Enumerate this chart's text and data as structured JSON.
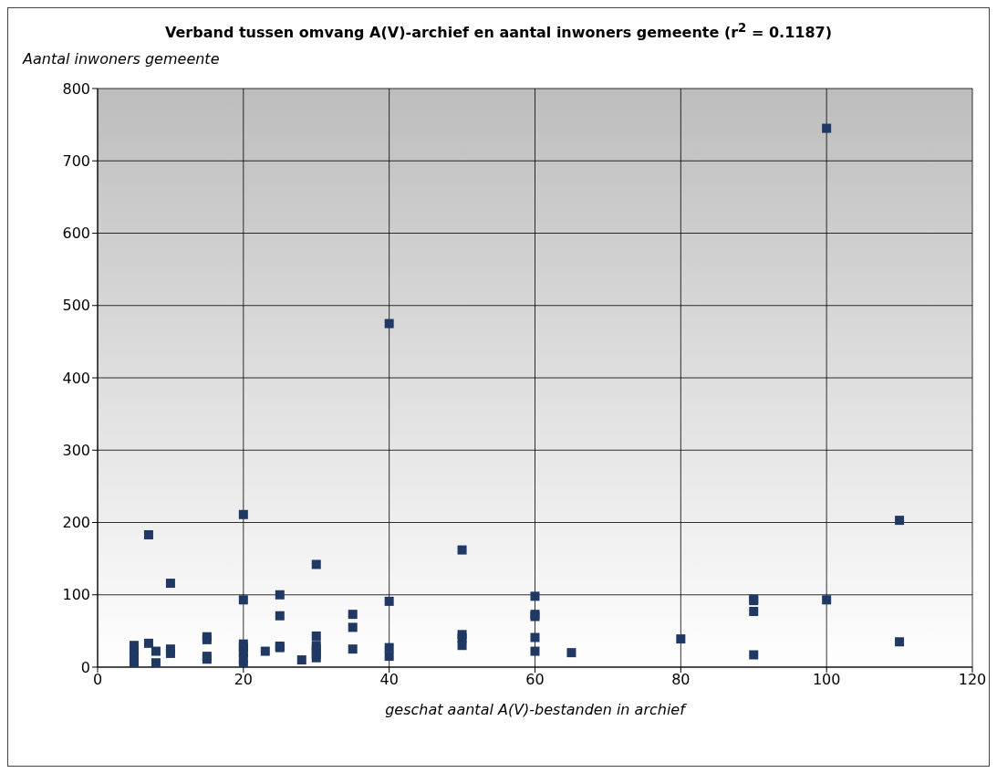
{
  "chart_data": {
    "type": "scatter",
    "title": "Verband tussen omvang A(V)-archief en aantal inwoners gemeente (r$^{2}$ = 0.1187)",
    "xlabel": "geschat aantal A(V)-bestanden in archief",
    "ylabel": "Aantal inwoners gemeente",
    "x": [
      5,
      5,
      5,
      5,
      5,
      7,
      7,
      8,
      8,
      10,
      10,
      10,
      15,
      15,
      15,
      15,
      20,
      20,
      20,
      20,
      20,
      20,
      20,
      23,
      25,
      25,
      25,
      25,
      28,
      30,
      30,
      30,
      30,
      30,
      30,
      35,
      35,
      35,
      40,
      40,
      40,
      40,
      50,
      50,
      50,
      50,
      60,
      60,
      60,
      60,
      60,
      65,
      80,
      90,
      90,
      90,
      90,
      100,
      100,
      110,
      110
    ],
    "series": [
      {
        "color": "#1f3864",
        "values": [
          30,
          22,
          15,
          8,
          2,
          183,
          33,
          22,
          6,
          116,
          25,
          19,
          42,
          38,
          15,
          11,
          211,
          93,
          32,
          27,
          20,
          12,
          3,
          22,
          100,
          71,
          29,
          27,
          10,
          142,
          43,
          30,
          25,
          18,
          13,
          73,
          55,
          25,
          475,
          91,
          27,
          15,
          162,
          45,
          40,
          30,
          98,
          73,
          70,
          41,
          22,
          20,
          39,
          94,
          92,
          77,
          17,
          745,
          93,
          203,
          35
        ]
      }
    ],
    "xlim": [
      0,
      120
    ],
    "xticks": [
      0,
      20,
      40,
      60,
      80,
      100,
      120
    ],
    "ylim": [
      0,
      800
    ],
    "yticks": [
      0,
      100,
      200,
      300,
      400,
      500,
      600,
      700,
      800
    ],
    "grid": true,
    "legend": false,
    "marker": "square"
  }
}
